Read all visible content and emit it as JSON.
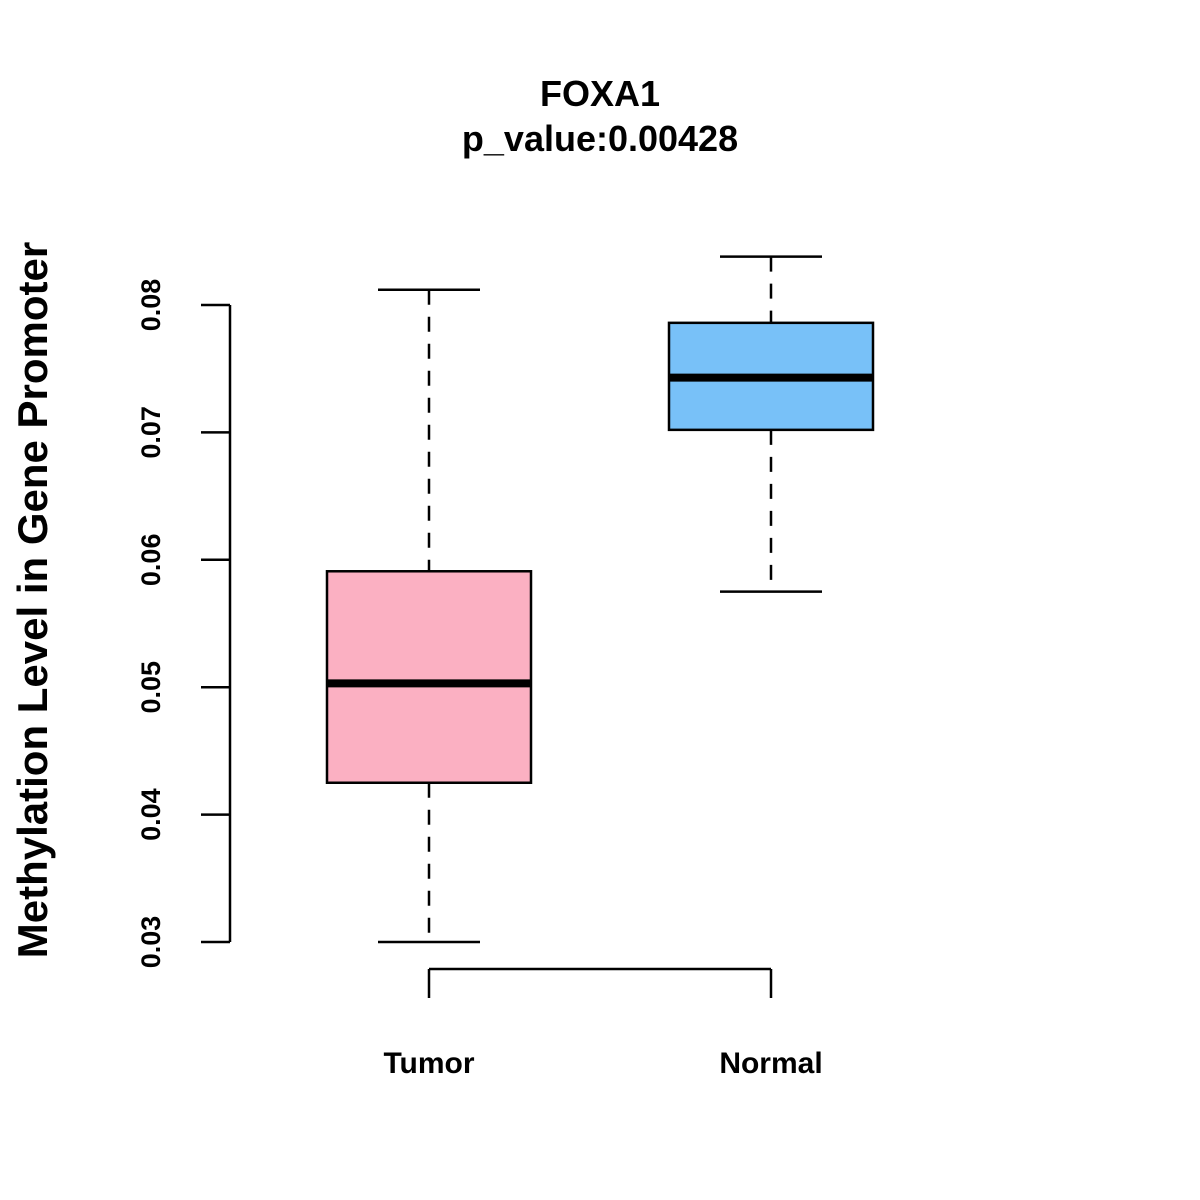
{
  "chart_data": {
    "type": "boxplot",
    "title": "FOXA1",
    "subtitle": "p_value:0.00428",
    "ylabel": "Methylation Level in Gene Promoter",
    "xlabel": "",
    "ylim": [
      0.03,
      0.08
    ],
    "yticks": [
      "0.03",
      "0.04",
      "0.05",
      "0.06",
      "0.07",
      "0.08"
    ],
    "yticks_values": [
      0.03,
      0.04,
      0.05,
      0.06,
      0.07,
      0.08
    ],
    "categories": [
      "Tumor",
      "Normal"
    ],
    "boxes": [
      {
        "name": "Tumor",
        "min": 0.03,
        "q1": 0.0425,
        "median": 0.0503,
        "q3": 0.0591,
        "max": 0.0812,
        "color": "#FBB0C2"
      },
      {
        "name": "Normal",
        "min": 0.0575,
        "q1": 0.0702,
        "median": 0.0743,
        "q3": 0.0786,
        "max": 0.0838,
        "color": "#78C1F8"
      }
    ],
    "grid": false
  }
}
